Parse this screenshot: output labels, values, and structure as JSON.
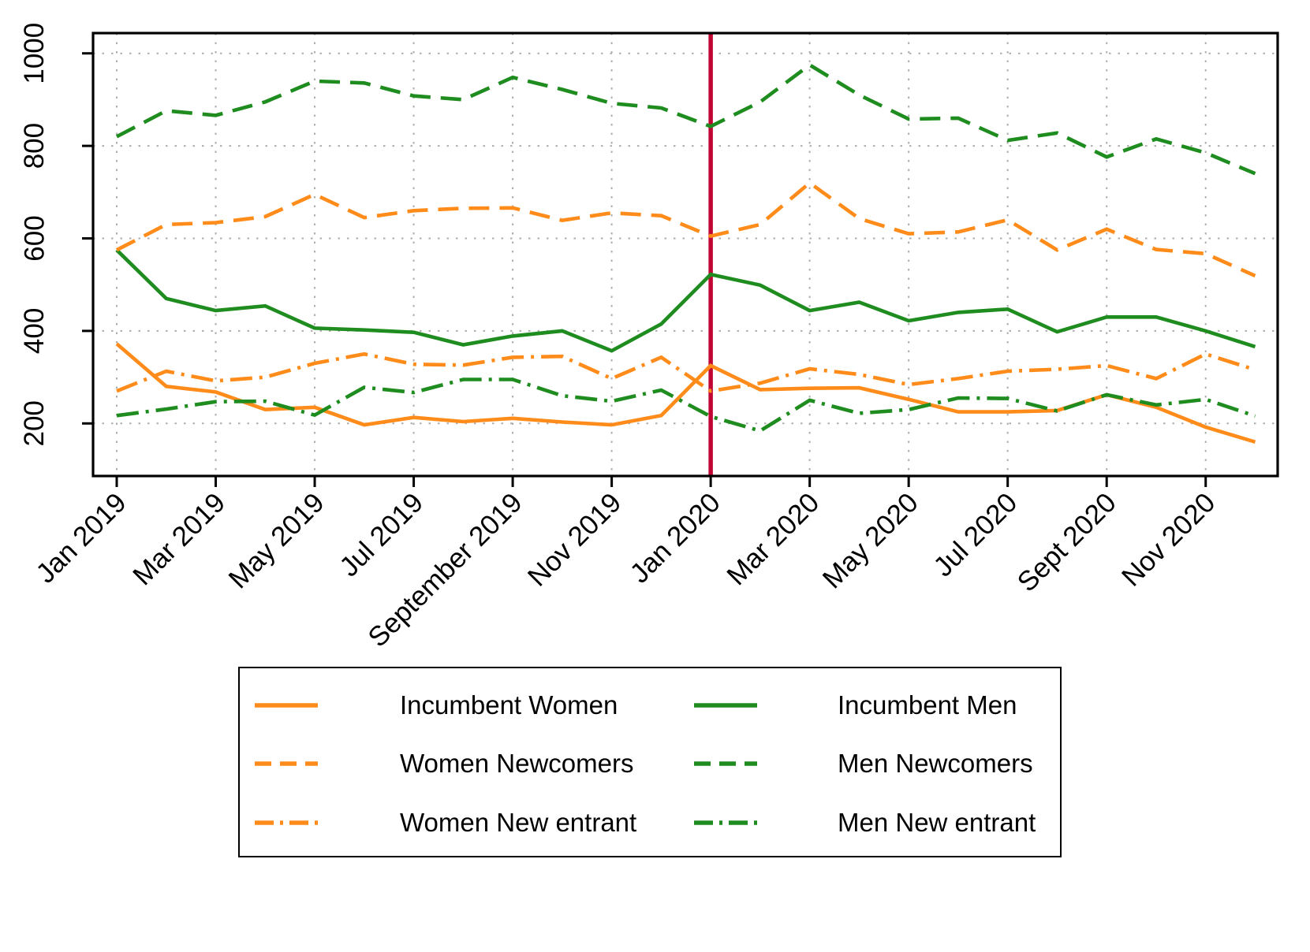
{
  "chart_data": {
    "type": "line",
    "title": "",
    "xlabel": "",
    "ylabel": "",
    "grid": true,
    "months": [
      "Jan 2019",
      "Feb 2019",
      "Mar 2019",
      "Apr 2019",
      "May 2019",
      "Jun 2019",
      "Jul 2019",
      "Aug 2019",
      "Sep 2019",
      "Oct 2019",
      "Nov 2019",
      "Dec 2019",
      "Jan 2020",
      "Feb 2020",
      "Mar 2020",
      "Apr 2020",
      "May 2020",
      "Jun 2020",
      "Jul 2020",
      "Aug 2020",
      "Sep 2020",
      "Oct 2020",
      "Nov 2020",
      "Dec 2020"
    ],
    "x_ticks": [
      {
        "month_index": 0,
        "label": "Jan 2019"
      },
      {
        "month_index": 2,
        "label": "Mar 2019"
      },
      {
        "month_index": 4,
        "label": "May 2019"
      },
      {
        "month_index": 6,
        "label": "Jul 2019"
      },
      {
        "month_index": 8,
        "label": "September 2019"
      },
      {
        "month_index": 10,
        "label": "Nov 2019"
      },
      {
        "month_index": 12,
        "label": "Jan 2020"
      },
      {
        "month_index": 14,
        "label": "Mar 2020"
      },
      {
        "month_index": 16,
        "label": "May 2020"
      },
      {
        "month_index": 18,
        "label": "Jul 2020"
      },
      {
        "month_index": 20,
        "label": "Sept 2020"
      },
      {
        "month_index": 22,
        "label": "Nov 2020"
      }
    ],
    "y_ticks": [
      200,
      400,
      600,
      800,
      1000
    ],
    "ylim": [
      86,
      1044
    ],
    "vline": {
      "month_index": 12,
      "color": "#C10534"
    },
    "colors": {
      "women": "#FF8C1A",
      "men": "#1E8C1E",
      "grid": "#ADADAD",
      "frame": "#000000"
    },
    "series": [
      {
        "name": "Incumbent Women",
        "color": "#FF8C1A",
        "dash": "solid",
        "values": [
          372,
          280,
          268,
          230,
          235,
          197,
          213,
          204,
          211,
          203,
          197,
          217,
          325,
          273,
          276,
          277,
          252,
          225,
          225,
          228,
          262,
          235,
          192,
          160
        ]
      },
      {
        "name": "Incumbent Men",
        "color": "#1E8C1E",
        "dash": "solid",
        "values": [
          575,
          470,
          444,
          454,
          406,
          402,
          397,
          370,
          389,
          400,
          357,
          415,
          522,
          499,
          444,
          462,
          422,
          440,
          447,
          398,
          430,
          430,
          400,
          366
        ]
      },
      {
        "name": "Women Newcomers",
        "color": "#FF8C1A",
        "dash": "dashed",
        "values": [
          575,
          630,
          634,
          647,
          695,
          645,
          660,
          665,
          666,
          639,
          655,
          649,
          605,
          630,
          720,
          643,
          610,
          614,
          640,
          575,
          620,
          576,
          567,
          519
        ]
      },
      {
        "name": "Men Newcomers",
        "color": "#1E8C1E",
        "dash": "dashed",
        "values": [
          820,
          876,
          866,
          895,
          940,
          936,
          908,
          900,
          948,
          922,
          892,
          882,
          842,
          895,
          975,
          910,
          858,
          860,
          812,
          828,
          776,
          815,
          785,
          740
        ]
      },
      {
        "name": "Women New entrant",
        "color": "#FF8C1A",
        "dash": "dashdot",
        "values": [
          270,
          313,
          292,
          300,
          330,
          350,
          328,
          326,
          343,
          345,
          297,
          343,
          270,
          287,
          318,
          306,
          284,
          297,
          313,
          317,
          325,
          297,
          350,
          316
        ]
      },
      {
        "name": "Men New entrant",
        "color": "#1E8C1E",
        "dash": "dashdot",
        "values": [
          217,
          231,
          247,
          248,
          218,
          278,
          267,
          295,
          295,
          260,
          248,
          272,
          215,
          184,
          250,
          222,
          230,
          255,
          254,
          227,
          262,
          240,
          252,
          216
        ]
      }
    ],
    "legend": {
      "position": "bottom",
      "rows": [
        [
          "Incumbent Women",
          "Incumbent Men"
        ],
        [
          "Women Newcomers",
          "Men Newcomers"
        ],
        [
          "Women New entrant",
          "Men New entrant"
        ]
      ]
    }
  }
}
